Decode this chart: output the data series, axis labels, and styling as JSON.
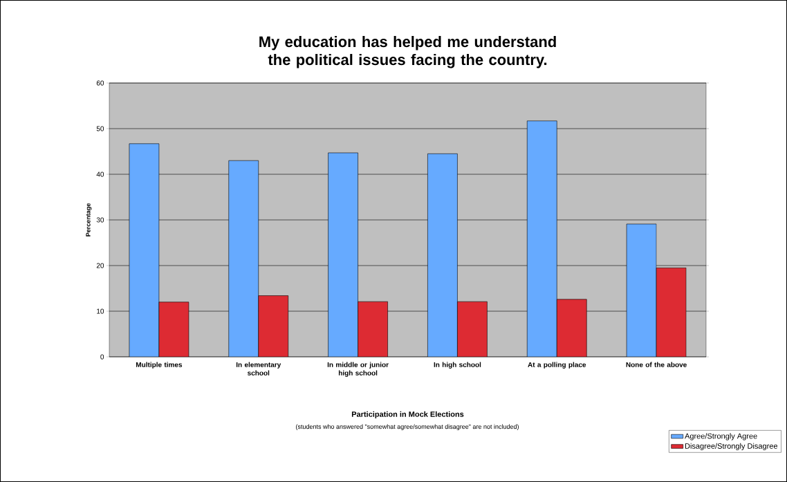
{
  "chart_data": {
    "type": "bar",
    "title": "My education has helped me understand the political issues facing the country.",
    "xlabel": "Participation in Mock Elections",
    "ylabel": "Percentage",
    "annotations": [
      "(students who answered \"somewhat agree/somewhat disagree\" are not included)"
    ],
    "categories": [
      "Multiple times",
      "In elementary school",
      "In middle or junior high school",
      "In high school",
      "At a polling place",
      "None of the above"
    ],
    "series": [
      {
        "name": "Agree/Strongly Agree",
        "color": "#66aaff",
        "values": [
          46.7,
          43.0,
          44.7,
          44.5,
          51.7,
          29.1
        ]
      },
      {
        "name": "Disagree/Strongly Disagree",
        "color": "#dd2b33",
        "values": [
          12.0,
          13.4,
          12.1,
          12.1,
          12.6,
          19.5
        ]
      }
    ],
    "ylim": [
      0,
      60
    ],
    "yticks": [
      0,
      10,
      20,
      30,
      40,
      50,
      60
    ],
    "grid": "y",
    "legend": "bottom right"
  }
}
